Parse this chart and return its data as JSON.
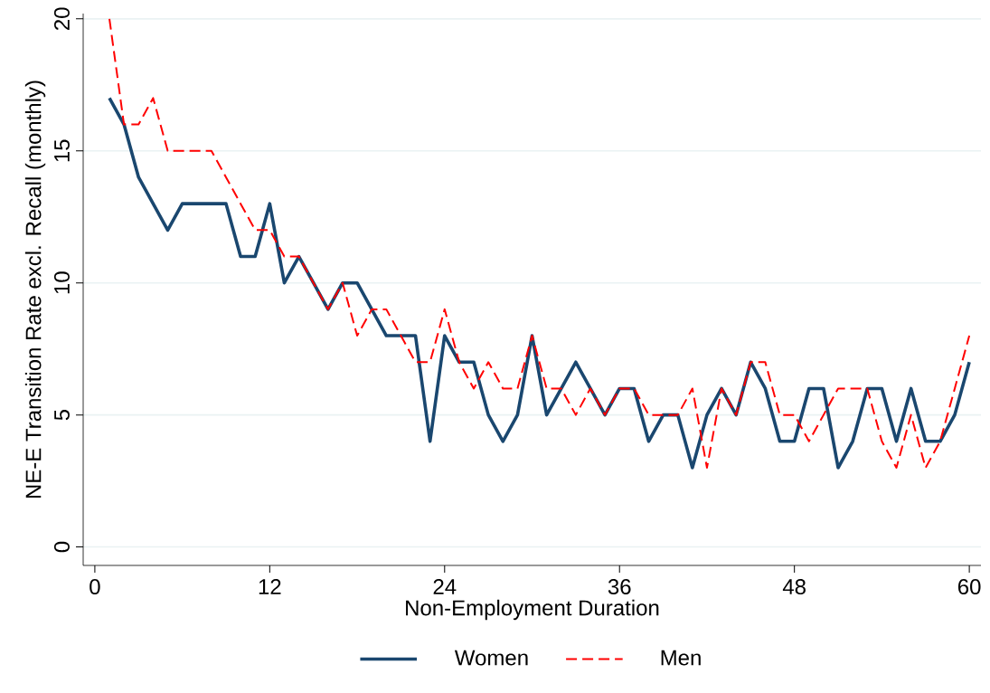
{
  "chart_data": {
    "type": "line",
    "xlabel": "Non-Employment Duration",
    "ylabel": "NE-E Transition Rate excl. Recall (monthly)",
    "x": [
      1,
      2,
      3,
      4,
      5,
      6,
      7,
      8,
      9,
      10,
      11,
      12,
      13,
      14,
      15,
      16,
      17,
      18,
      19,
      20,
      21,
      22,
      23,
      24,
      25,
      26,
      27,
      28,
      29,
      30,
      31,
      32,
      33,
      34,
      35,
      36,
      37,
      38,
      39,
      40,
      41,
      42,
      43,
      44,
      45,
      46,
      47,
      48,
      49,
      50,
      51,
      52,
      53,
      54,
      55,
      56,
      57,
      58,
      59,
      60
    ],
    "series": [
      {
        "name": "Women",
        "color": "#1a476f",
        "line_style": "solid",
        "values": [
          17,
          16,
          14,
          13,
          12,
          13,
          13,
          13,
          13,
          11,
          11,
          13,
          10,
          11,
          10,
          9,
          10,
          10,
          9,
          8,
          8,
          8,
          4,
          8,
          7,
          7,
          5,
          4,
          5,
          8,
          5,
          6,
          7,
          6,
          5,
          6,
          6,
          4,
          5,
          5,
          3,
          5,
          6,
          5,
          7,
          6,
          4,
          4,
          6,
          6,
          3,
          4,
          6,
          6,
          4,
          6,
          4,
          4,
          5,
          7
        ]
      },
      {
        "name": "Men",
        "color": "#ff0000",
        "line_style": "dashed",
        "values": [
          20,
          16,
          16,
          17,
          15,
          15,
          15,
          15,
          14,
          13,
          12,
          12,
          11,
          11,
          10,
          9,
          10,
          8,
          9,
          9,
          8,
          7,
          7,
          9,
          7,
          6,
          7,
          6,
          6,
          8,
          6,
          6,
          5,
          6,
          5,
          6,
          6,
          5,
          5,
          5,
          6,
          3,
          6,
          5,
          7,
          7,
          5,
          5,
          4,
          5,
          6,
          6,
          6,
          4,
          3,
          5,
          3,
          4,
          6,
          8
        ]
      }
    ],
    "xlim": [
      -0.8,
      60.8
    ],
    "ylim": [
      -0.7,
      20.2
    ],
    "xticks": [
      0,
      12,
      24,
      36,
      48,
      60
    ],
    "yticks": [
      0,
      5,
      10,
      15,
      20
    ],
    "grid": "y",
    "legend": "bottom",
    "marker": "none"
  }
}
